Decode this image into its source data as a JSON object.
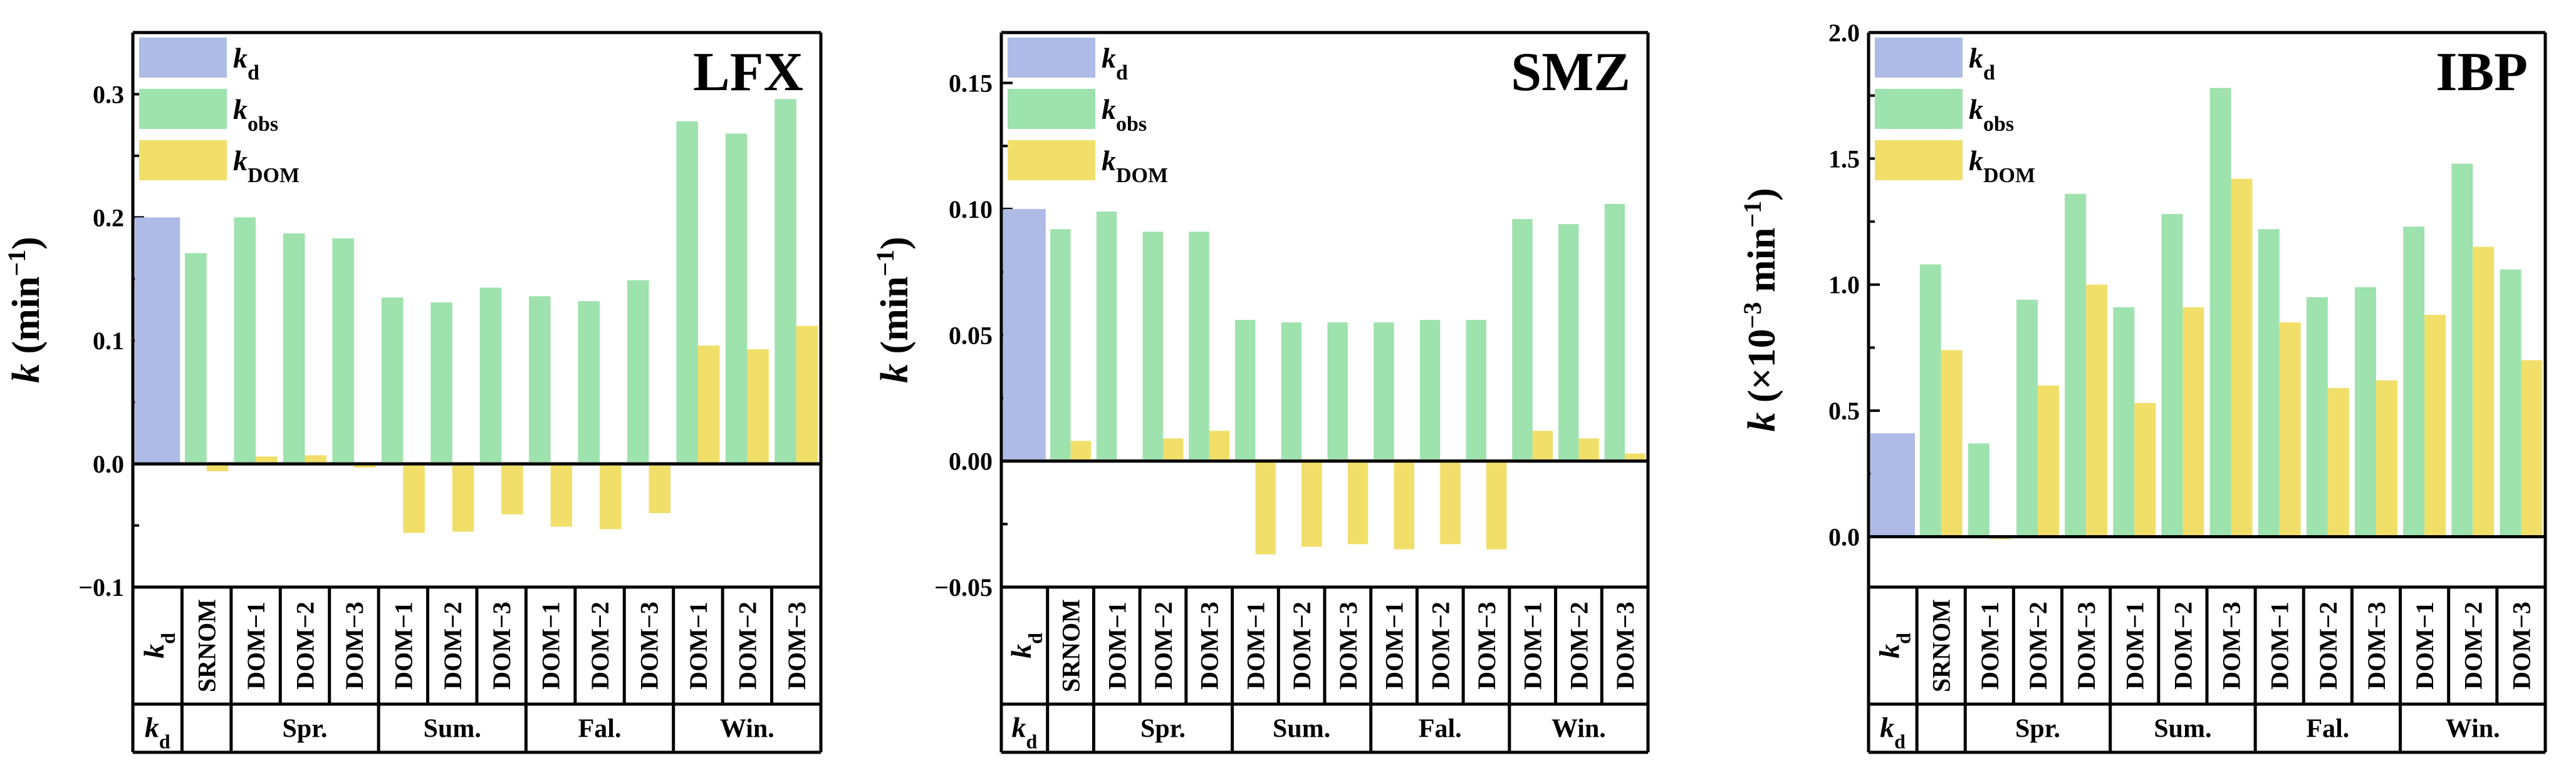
{
  "colors": {
    "kd": "#aebbe6",
    "kobs": "#9ee2ae",
    "kdom": "#f1df6a"
  },
  "legend": [
    {
      "base": "k",
      "sub": "d",
      "series": "kd"
    },
    {
      "base": "k",
      "sub": "obs",
      "series": "kobs"
    },
    {
      "base": "k",
      "sub": "DOM",
      "series": "kdom"
    }
  ],
  "categories": [
    "kd",
    "SRNOM",
    "DOM−1",
    "DOM−2",
    "DOM−3",
    "DOM−1",
    "DOM−2",
    "DOM−3",
    "DOM−1",
    "DOM−2",
    "DOM−3",
    "DOM−1",
    "DOM−2",
    "DOM−3"
  ],
  "kd_label": {
    "base": "k",
    "sub": "d"
  },
  "groups": [
    "Spr.",
    "Sum.",
    "Fal.",
    "Win."
  ],
  "chart_data": [
    {
      "type": "bar",
      "title": "LFX",
      "ylabel_main": "k (min",
      "ylabel_sup": "−1",
      "ylabel_end": ")",
      "ylim": [
        -0.1,
        0.35
      ],
      "yticks": [
        -0.1,
        0.0,
        0.1,
        0.2,
        0.3
      ],
      "ytick_labels": [
        "−0.1",
        "0.0",
        "0.1",
        "0.2",
        "0.3"
      ],
      "series": [
        {
          "name": "kd",
          "values": [
            0.2,
            null,
            null,
            null,
            null,
            null,
            null,
            null,
            null,
            null,
            null,
            null,
            null,
            null
          ]
        },
        {
          "name": "kobs",
          "values": [
            null,
            0.171,
            0.2,
            0.187,
            0.183,
            0.135,
            0.131,
            0.143,
            0.136,
            0.132,
            0.149,
            0.278,
            0.268,
            0.296
          ]
        },
        {
          "name": "kdom",
          "values": [
            null,
            -0.006,
            0.006,
            0.007,
            -0.003,
            -0.056,
            -0.055,
            -0.041,
            -0.051,
            -0.053,
            -0.04,
            0.096,
            0.093,
            0.112
          ]
        }
      ]
    },
    {
      "type": "bar",
      "title": "SMZ",
      "ylabel_main": "k (min",
      "ylabel_sup": "−1",
      "ylabel_end": ")",
      "ylim": [
        -0.05,
        0.17
      ],
      "yticks": [
        -0.05,
        0.0,
        0.05,
        0.1,
        0.15
      ],
      "ytick_labels": [
        "−0.05",
        "0.00",
        "0.05",
        "0.10",
        "0.15"
      ],
      "series": [
        {
          "name": "kd",
          "values": [
            0.1,
            null,
            null,
            null,
            null,
            null,
            null,
            null,
            null,
            null,
            null,
            null,
            null,
            null
          ]
        },
        {
          "name": "kobs",
          "values": [
            null,
            0.092,
            0.099,
            0.091,
            0.091,
            0.056,
            0.055,
            0.055,
            0.055,
            0.056,
            0.056,
            0.096,
            0.094,
            0.102
          ]
        },
        {
          "name": "kdom",
          "values": [
            null,
            0.008,
            null,
            0.009,
            0.012,
            -0.037,
            -0.034,
            -0.033,
            -0.035,
            -0.033,
            -0.035,
            0.012,
            0.009,
            0.003
          ]
        }
      ]
    },
    {
      "type": "bar",
      "title": "IBP",
      "ylabel_main": "k (×10",
      "ylabel_sup": "−3",
      "ylabel_end": " min",
      "ylabel_sup2": "−1",
      "ylabel_end2": ")",
      "ylim": [
        -0.2,
        2.0
      ],
      "yticks": [
        0.0,
        0.5,
        1.0,
        1.5,
        2.0
      ],
      "ytick_labels": [
        "0.0",
        "0.5",
        "1.0",
        "1.5",
        "2.0"
      ],
      "series": [
        {
          "name": "kd",
          "values": [
            0.41,
            null,
            null,
            null,
            null,
            null,
            null,
            null,
            null,
            null,
            null,
            null,
            null,
            null
          ]
        },
        {
          "name": "kobs",
          "values": [
            null,
            1.08,
            0.37,
            0.94,
            1.36,
            0.91,
            1.28,
            1.78,
            1.22,
            0.95,
            0.99,
            1.23,
            1.48,
            1.06
          ]
        },
        {
          "name": "kdom",
          "values": [
            null,
            0.74,
            -0.01,
            0.6,
            1.0,
            0.53,
            0.91,
            1.42,
            0.85,
            0.59,
            0.62,
            0.88,
            1.15,
            0.7
          ]
        }
      ]
    }
  ]
}
